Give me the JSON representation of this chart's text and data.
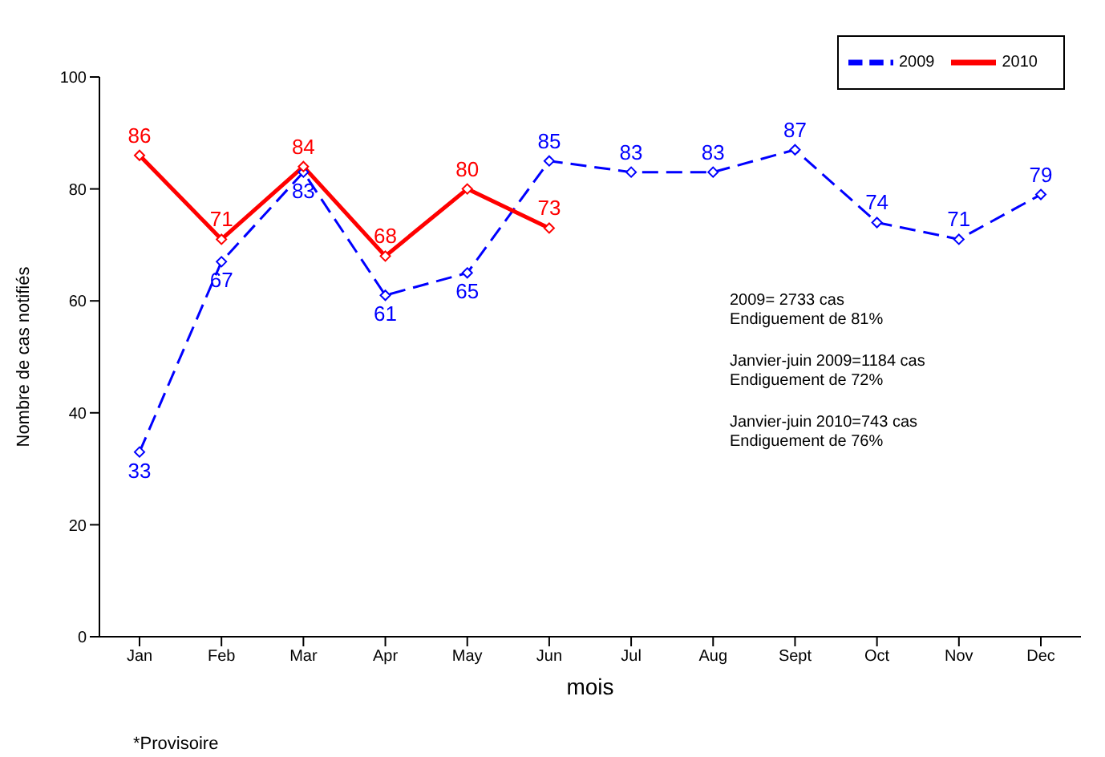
{
  "chart_data": {
    "type": "line",
    "xlabel": "mois",
    "ylabel": "Nombre de cas notifiés",
    "categories": [
      "Jan",
      "Feb",
      "Mar",
      "Apr",
      "May",
      "Jun",
      "Jul",
      "Aug",
      "Sept",
      "Oct",
      "Nov",
      "Dec"
    ],
    "series": [
      {
        "name": "2009",
        "color": "#0000ff",
        "line_style": "dashed",
        "values": [
          33,
          67,
          83,
          61,
          65,
          85,
          83,
          83,
          87,
          74,
          71,
          79
        ]
      },
      {
        "name": "2010",
        "color": "#ff0000",
        "line_style": "solid",
        "values": [
          86,
          71,
          84,
          68,
          80,
          73,
          null,
          null,
          null,
          null,
          null,
          null
        ]
      }
    ],
    "ylim": [
      0,
      100
    ],
    "yticks": [
      0,
      20,
      40,
      60,
      80,
      100
    ],
    "grid": false,
    "legend": "top right",
    "marker": "diamond",
    "data_labels": true,
    "annotations": [
      "2009= 2733 cas",
      "Endiguement de 81%",
      "Janvier-juin 2009=1184 cas",
      "Endiguement de 72%",
      "Janvier-juin 2010=743 cas",
      "Endiguement de 76%",
      "*Provisoire"
    ]
  }
}
